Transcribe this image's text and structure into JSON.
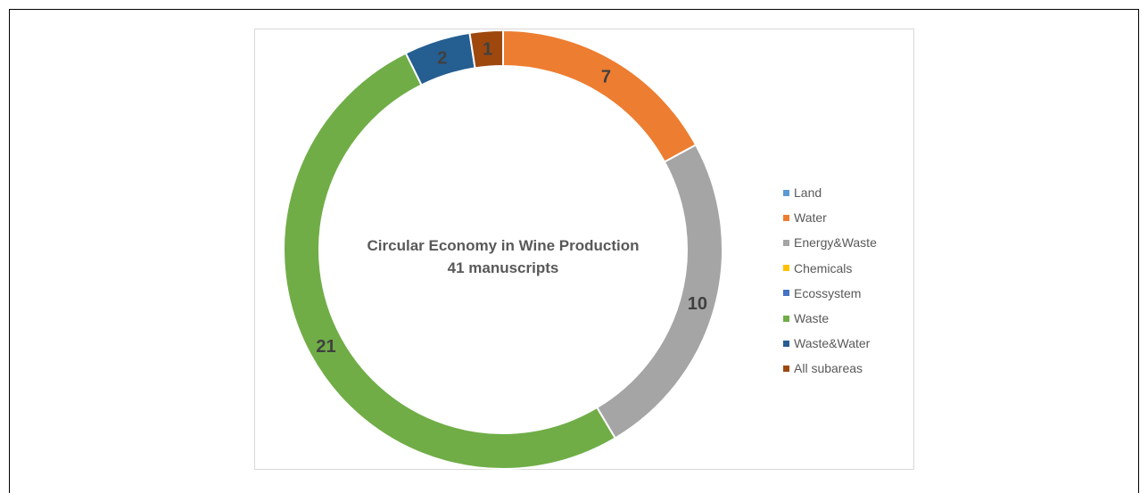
{
  "chart_data": {
    "type": "pie",
    "variant": "doughnut",
    "center_text": [
      "Circular Economy in Wine Production",
      "41 manuscripts"
    ],
    "series": [
      {
        "name": "Land",
        "value": 0,
        "color": "#5b9bd5",
        "label": ""
      },
      {
        "name": "Water",
        "value": 7,
        "color": "#ed7d31",
        "label": "7"
      },
      {
        "name": "Energy&Waste",
        "value": 10,
        "color": "#a5a5a5",
        "label": "10"
      },
      {
        "name": "Chemicals",
        "value": 0,
        "color": "#ffc000",
        "label": ""
      },
      {
        "name": "Ecossystem",
        "value": 0,
        "color": "#4472c4",
        "label": ""
      },
      {
        "name": "Waste",
        "value": 21,
        "color": "#70ad47",
        "label": "21"
      },
      {
        "name": "Waste&Water",
        "value": 2,
        "color": "#255e91",
        "label": "2"
      },
      {
        "name": "All subareas",
        "value": 1,
        "color": "#9e480e",
        "label": "1"
      }
    ],
    "legend_position": "right"
  }
}
